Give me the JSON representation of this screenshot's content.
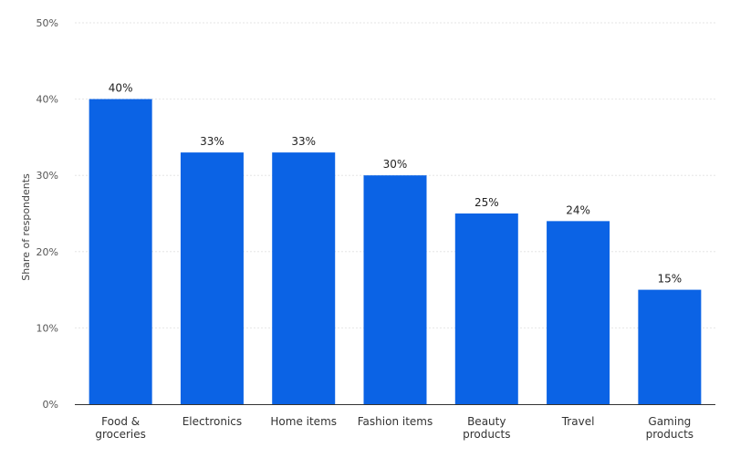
{
  "chart_data": {
    "type": "bar",
    "title": "",
    "xlabel": "",
    "ylabel": "Share of respondents",
    "categories": [
      [
        "Food &",
        "groceries"
      ],
      [
        "Electronics"
      ],
      [
        "Home items"
      ],
      [
        "Fashion items"
      ],
      [
        "Beauty",
        "products"
      ],
      [
        "Travel"
      ],
      [
        "Gaming",
        "products"
      ]
    ],
    "values": [
      40,
      33,
      33,
      30,
      25,
      24,
      15
    ],
    "data_labels": [
      "40%",
      "33%",
      "33%",
      "30%",
      "25%",
      "24%",
      "15%"
    ],
    "ylim": [
      0,
      50
    ],
    "yticks": [
      0,
      10,
      20,
      30,
      40,
      50
    ],
    "ytick_labels": [
      "0%",
      "10%",
      "20%",
      "30%",
      "40%",
      "50%"
    ],
    "grid": true,
    "bar_color": "#0b63e5",
    "grid_color": "#e6e6e6",
    "axis_color": "#333333"
  }
}
